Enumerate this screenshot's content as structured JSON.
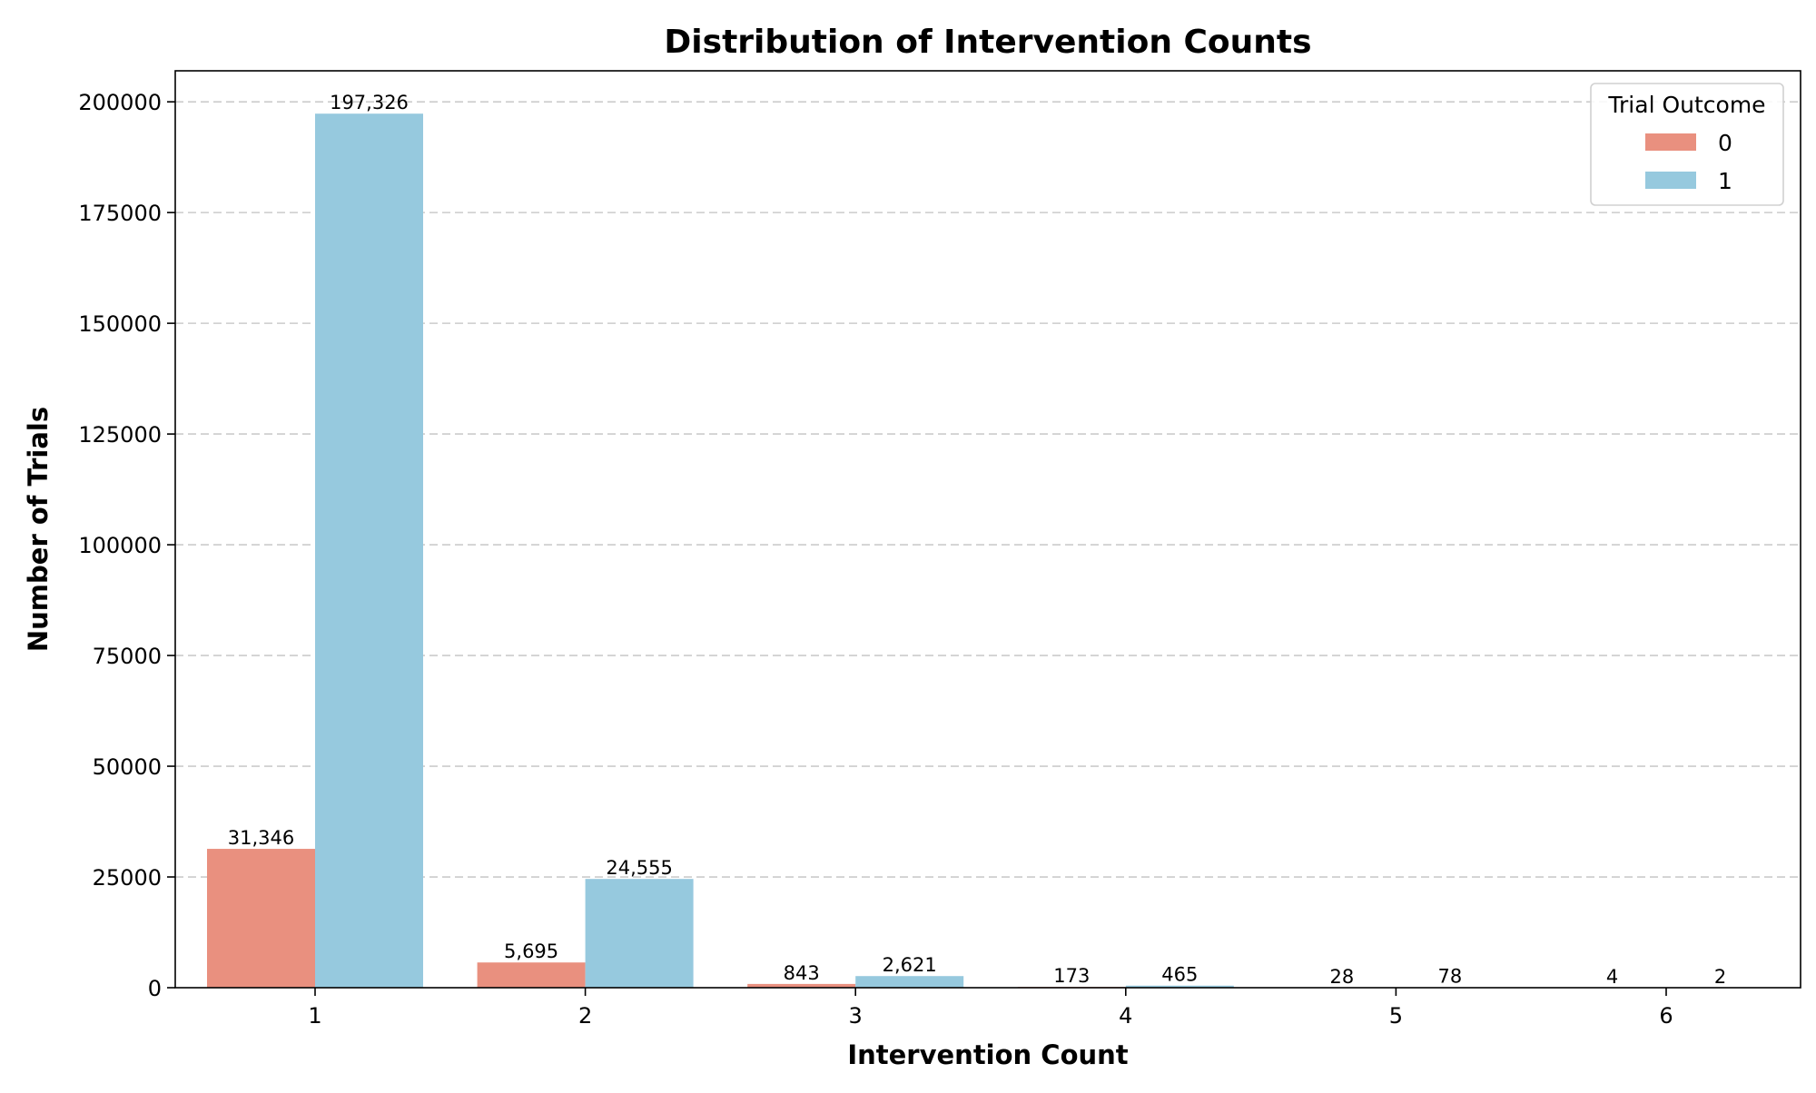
{
  "chart_data": {
    "type": "bar",
    "title": "Distribution of Intervention Counts",
    "xlabel": "Intervention Count",
    "ylabel": "Number of Trials",
    "categories": [
      "1",
      "2",
      "3",
      "4",
      "5",
      "6"
    ],
    "series": [
      {
        "name": "0",
        "color": "#e9907f",
        "values": [
          31346,
          5695,
          843,
          173,
          28,
          4
        ],
        "labels": [
          "31,346",
          "5,695",
          "843",
          "173",
          "28",
          "4"
        ]
      },
      {
        "name": "1",
        "color": "#96c9de",
        "values": [
          197326,
          24555,
          2621,
          465,
          78,
          2
        ],
        "labels": [
          "197,326",
          "24,555",
          "2,621",
          "465",
          "78",
          "2"
        ]
      }
    ],
    "ylim": [
      0,
      207000
    ],
    "yticks": [
      0,
      25000,
      50000,
      75000,
      100000,
      125000,
      150000,
      175000,
      200000
    ],
    "ytick_labels": [
      "0",
      "25000",
      "50000",
      "75000",
      "100000",
      "125000",
      "150000",
      "175000",
      "200000"
    ],
    "grid": "y-dashed",
    "legend": {
      "title": "Trial Outcome",
      "placement": "top-right"
    }
  }
}
